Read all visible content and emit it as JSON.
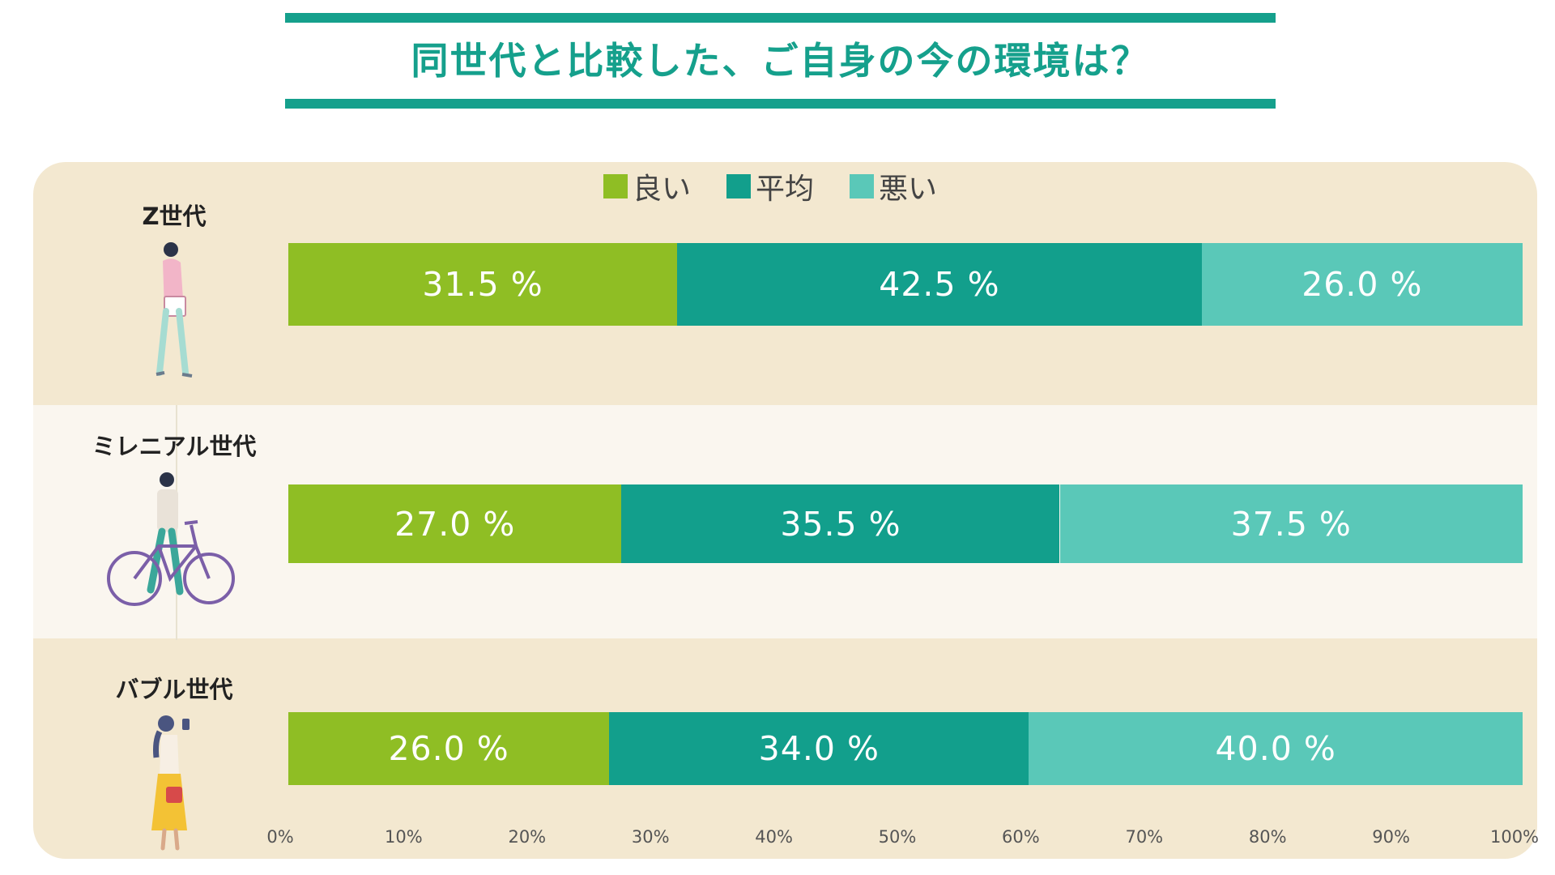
{
  "title": "同世代と比較した、ご自身の今の環境は？",
  "colors": {
    "accent": "#15a08c",
    "good": "#8fbe24",
    "average": "#129f8c",
    "bad": "#5ac8b8",
    "panel": "#f3e8d0",
    "panel_alt": "#faf6ef"
  },
  "chart_data": {
    "type": "bar",
    "orientation": "horizontal",
    "stacked": true,
    "title": "同世代と比較した、ご自身の今の環境は？",
    "categories": [
      "Z世代",
      "ミレニアル世代",
      "バブル世代"
    ],
    "series": [
      {
        "name": "良い",
        "values": [
          31.5,
          27.0,
          26.0
        ],
        "labels": [
          "31.5 %",
          "27.0 %",
          "26.0 %"
        ]
      },
      {
        "name": "平均",
        "values": [
          42.5,
          35.5,
          34.0
        ],
        "labels": [
          "42.5 %",
          "35.5 %",
          "34.0 %"
        ]
      },
      {
        "name": "悪い",
        "values": [
          26.0,
          37.5,
          40.0
        ],
        "labels": [
          "26.0 %",
          "37.5 %",
          "40.0 %"
        ]
      }
    ],
    "xlim": [
      0,
      100
    ],
    "xticks": [
      "0%",
      "10%",
      "20%",
      "30%",
      "40%",
      "50%",
      "60%",
      "70%",
      "80%",
      "90%",
      "100%"
    ],
    "xlabel": "",
    "ylabel": "",
    "legend_position": "top-center",
    "grid": false
  }
}
